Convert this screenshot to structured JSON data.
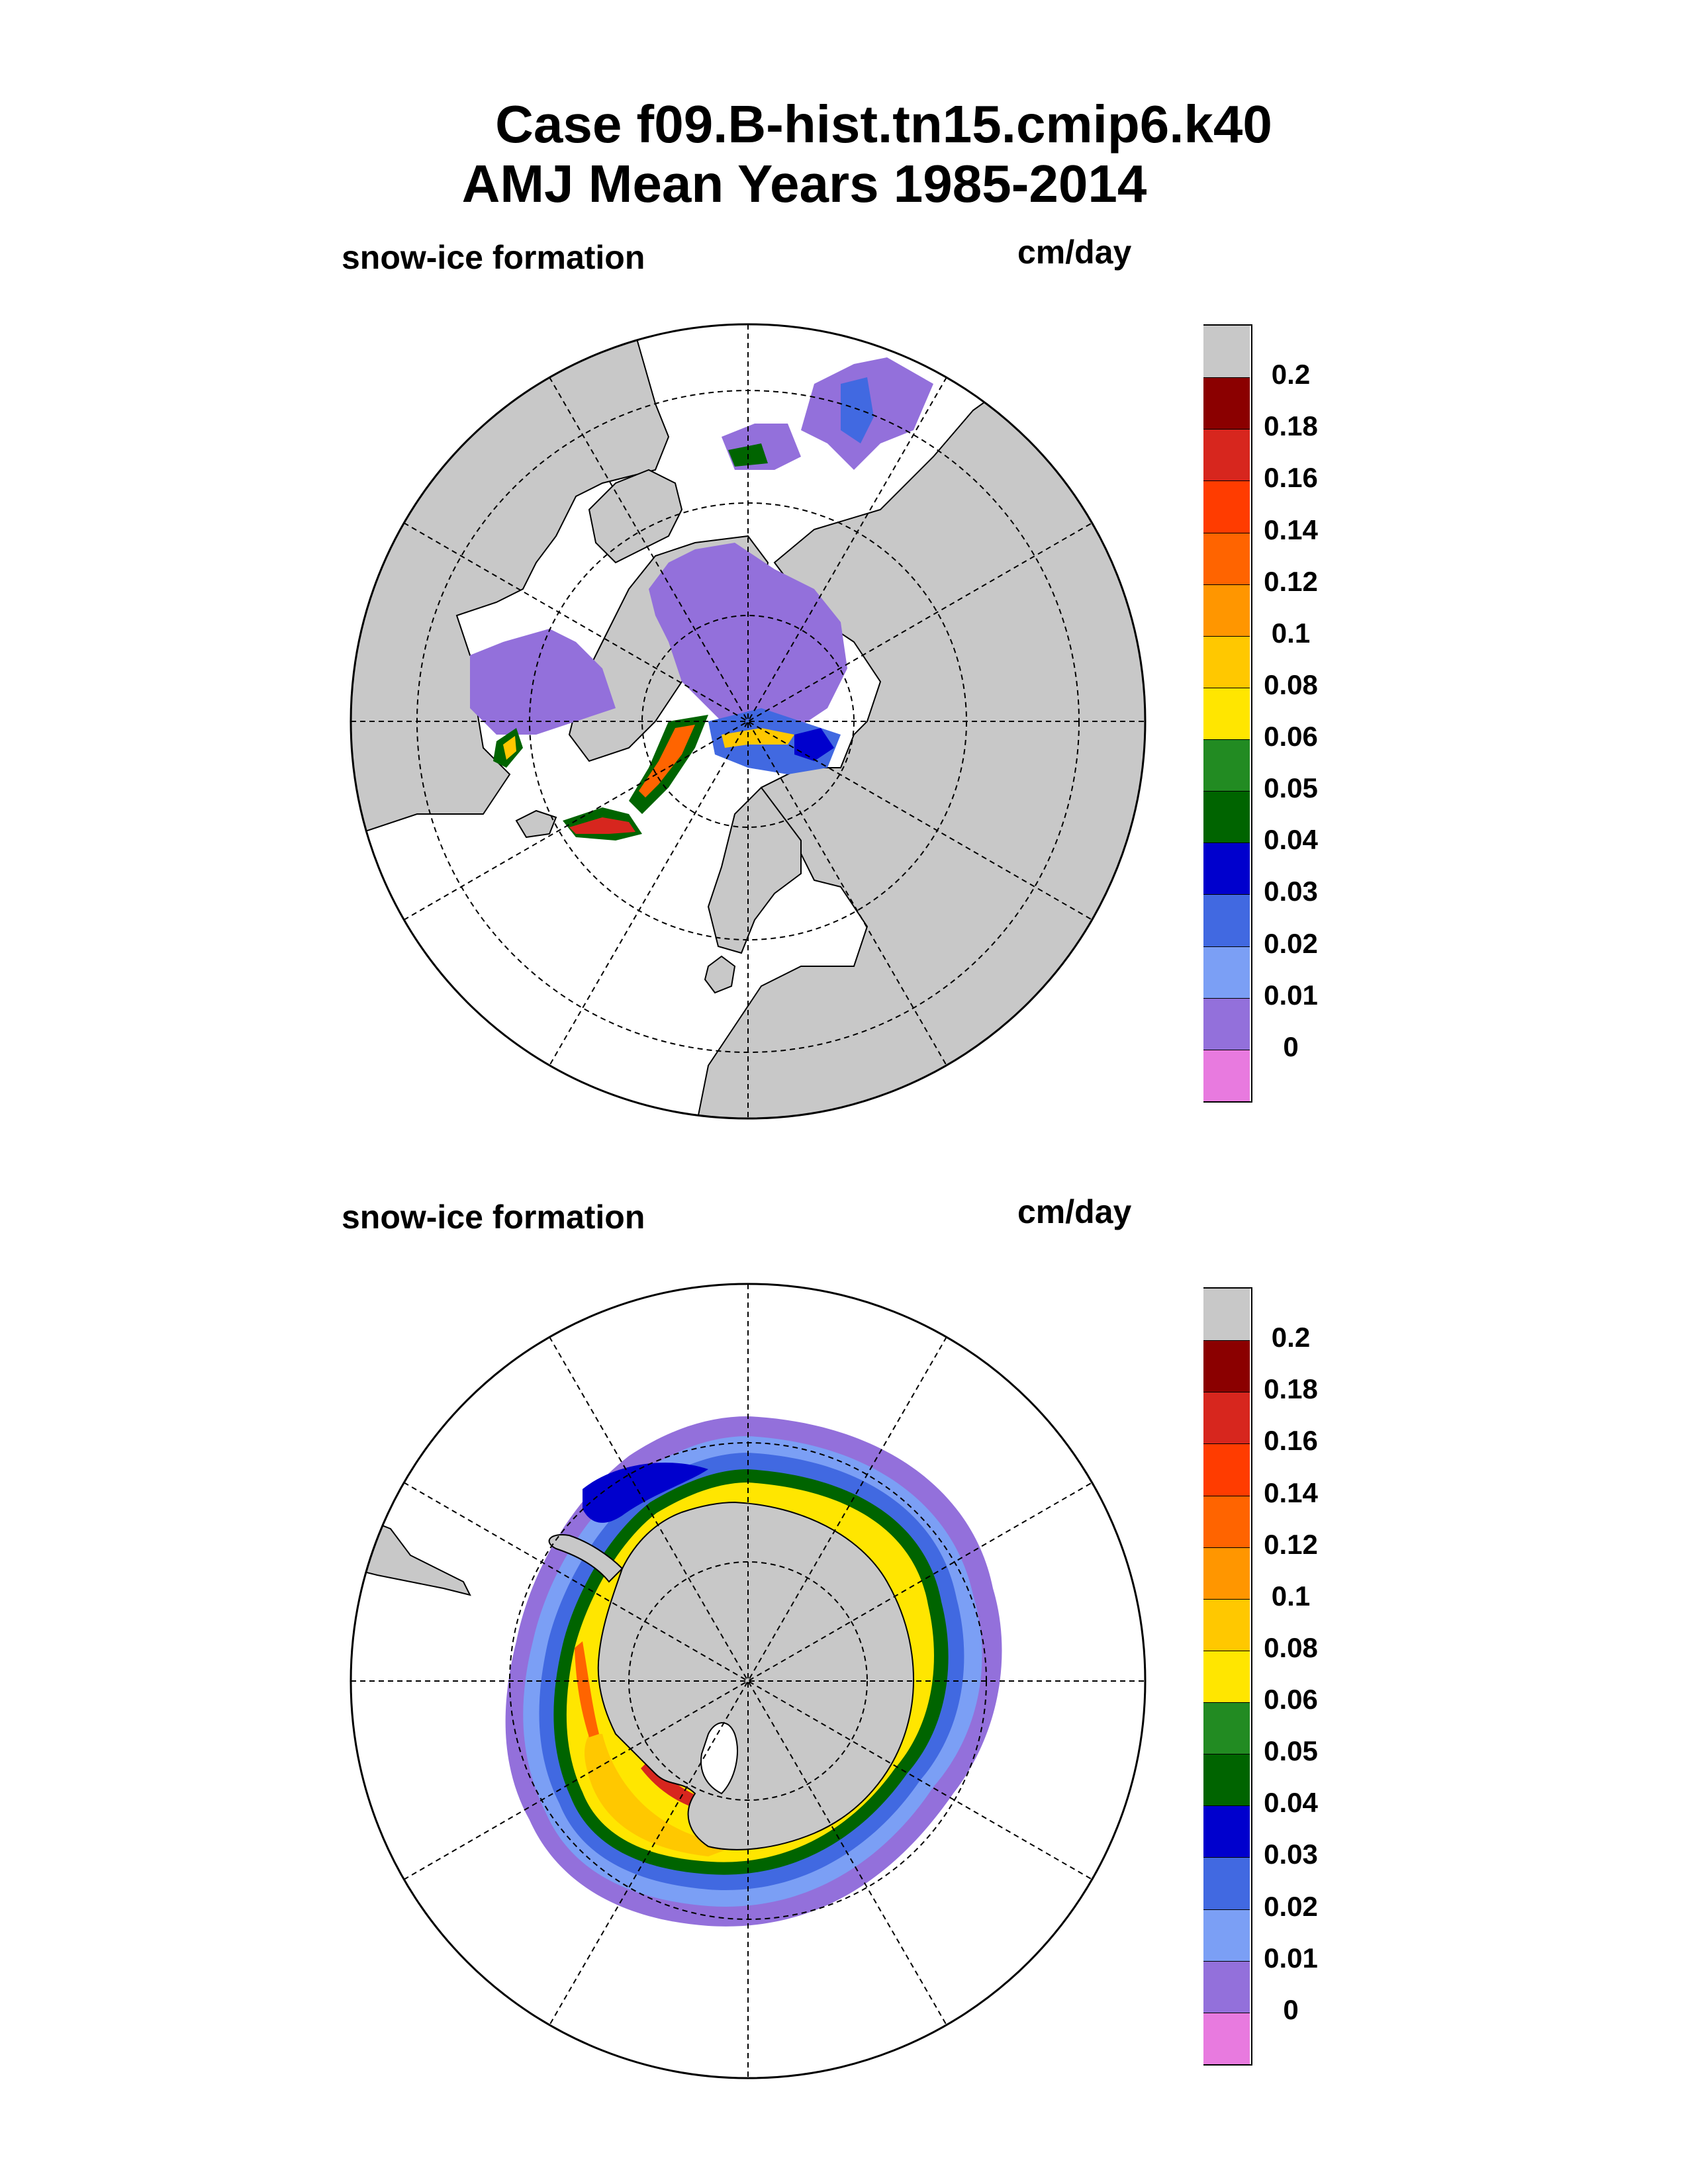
{
  "title": {
    "line1": "Case f09.B-hist.tn15.cmip6.k40",
    "line2": "AMJ Mean   Years 1985-2014"
  },
  "panels": [
    {
      "id": "north",
      "variable_label": "snow-ice formation",
      "units_label": "cm/day",
      "hemisphere": "north"
    },
    {
      "id": "south",
      "variable_label": "snow-ice formation",
      "units_label": "cm/day",
      "hemisphere": "south"
    }
  ],
  "colorbar": {
    "labels": [
      "0.2",
      "0.18",
      "0.16",
      "0.14",
      "0.12",
      "0.1",
      "0.08",
      "0.06",
      "0.05",
      "0.04",
      "0.03",
      "0.02",
      "0.01",
      "0"
    ],
    "colors": [
      "#c8c8c8",
      "#8b0000",
      "#d7261e",
      "#ff3c00",
      "#ff6400",
      "#ff9600",
      "#ffc800",
      "#ffe600",
      "#228b22",
      "#006400",
      "#0000cd",
      "#4169e1",
      "#7b9ff5",
      "#9370db",
      "#e87adf"
    ]
  },
  "colors": {
    "land": "#c8c8c8",
    "ocean": "#ffffff",
    "no_snow_ice": "#9370db"
  }
}
